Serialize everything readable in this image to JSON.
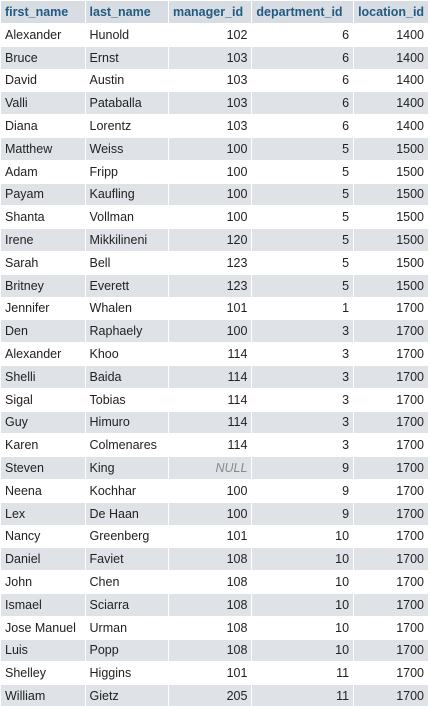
{
  "table": {
    "columns": [
      "first_name",
      "last_name",
      "manager_id",
      "department_id",
      "location_id"
    ],
    "rows": [
      [
        "Alexander",
        "Hunold",
        "102",
        "6",
        "1400"
      ],
      [
        "Bruce",
        "Ernst",
        "103",
        "6",
        "1400"
      ],
      [
        "David",
        "Austin",
        "103",
        "6",
        "1400"
      ],
      [
        "Valli",
        "Pataballa",
        "103",
        "6",
        "1400"
      ],
      [
        "Diana",
        "Lorentz",
        "103",
        "6",
        "1400"
      ],
      [
        "Matthew",
        "Weiss",
        "100",
        "5",
        "1500"
      ],
      [
        "Adam",
        "Fripp",
        "100",
        "5",
        "1500"
      ],
      [
        "Payam",
        "Kaufling",
        "100",
        "5",
        "1500"
      ],
      [
        "Shanta",
        "Vollman",
        "100",
        "5",
        "1500"
      ],
      [
        "Irene",
        "Mikkilineni",
        "120",
        "5",
        "1500"
      ],
      [
        "Sarah",
        "Bell",
        "123",
        "5",
        "1500"
      ],
      [
        "Britney",
        "Everett",
        "123",
        "5",
        "1500"
      ],
      [
        "Jennifer",
        "Whalen",
        "101",
        "1",
        "1700"
      ],
      [
        "Den",
        "Raphaely",
        "100",
        "3",
        "1700"
      ],
      [
        "Alexander",
        "Khoo",
        "114",
        "3",
        "1700"
      ],
      [
        "Shelli",
        "Baida",
        "114",
        "3",
        "1700"
      ],
      [
        "Sigal",
        "Tobias",
        "114",
        "3",
        "1700"
      ],
      [
        "Guy",
        "Himuro",
        "114",
        "3",
        "1700"
      ],
      [
        "Karen",
        "Colmenares",
        "114",
        "3",
        "1700"
      ],
      [
        "Steven",
        "King",
        "NULL",
        "9",
        "1700"
      ],
      [
        "Neena",
        "Kochhar",
        "100",
        "9",
        "1700"
      ],
      [
        "Lex",
        "De Haan",
        "100",
        "9",
        "1700"
      ],
      [
        "Nancy",
        "Greenberg",
        "101",
        "10",
        "1700"
      ],
      [
        "Daniel",
        "Faviet",
        "108",
        "10",
        "1700"
      ],
      [
        "John",
        "Chen",
        "108",
        "10",
        "1700"
      ],
      [
        "Ismael",
        "Sciarra",
        "108",
        "10",
        "1700"
      ],
      [
        "Jose Manuel",
        "Urman",
        "108",
        "10",
        "1700"
      ],
      [
        "Luis",
        "Popp",
        "108",
        "10",
        "1700"
      ],
      [
        "Shelley",
        "Higgins",
        "101",
        "11",
        "1700"
      ],
      [
        "William",
        "Gietz",
        "205",
        "11",
        "1700"
      ]
    ]
  }
}
